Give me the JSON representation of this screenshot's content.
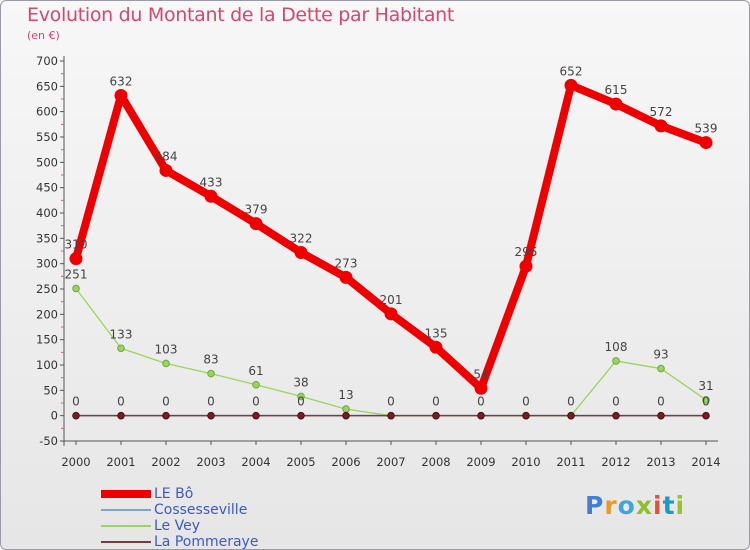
{
  "chart_data": {
    "type": "line",
    "title": "Evolution du Montant de la Dette par Habitant",
    "subtitle": "(en €)",
    "xlabel": "",
    "ylabel": "",
    "ylim": [
      -50,
      700
    ],
    "yticks": [
      -50,
      0,
      50,
      100,
      150,
      200,
      250,
      300,
      350,
      400,
      450,
      500,
      550,
      600,
      650,
      700
    ],
    "categories": [
      "2000",
      "2001",
      "2002",
      "2003",
      "2004",
      "2005",
      "2006",
      "2007",
      "2008",
      "2009",
      "2010",
      "2011",
      "2012",
      "2013",
      "2014"
    ],
    "grid": false,
    "legend_position": "bottom-left",
    "series": [
      {
        "name": "LE Bô",
        "color": "#ee0000",
        "values": [
          310,
          632,
          484,
          433,
          379,
          322,
          273,
          201,
          135,
          54,
          295,
          652,
          615,
          572,
          539
        ],
        "labels": [
          "310",
          "632",
          "484",
          "433",
          "379",
          "322",
          "273",
          "201",
          "135",
          "54",
          "295",
          "652",
          "615",
          "572",
          "539"
        ]
      },
      {
        "name": "Cossesseville",
        "color": "#7aa6cc",
        "values": [
          0,
          0,
          0,
          0,
          0,
          0,
          0,
          0,
          0,
          0,
          0,
          0,
          0,
          0,
          0
        ],
        "labels": [
          "0",
          "0",
          "0",
          "0",
          "0",
          "0",
          "",
          "0",
          "0",
          "0",
          "0",
          "0",
          "0",
          "0",
          "0"
        ]
      },
      {
        "name": "Le Vey",
        "color": "#9ad35e",
        "values": [
          251,
          133,
          103,
          83,
          61,
          38,
          13,
          0,
          0,
          0,
          0,
          0,
          108,
          93,
          31
        ],
        "labels": [
          "251",
          "133",
          "103",
          "83",
          "61",
          "38",
          "13",
          "",
          "",
          "",
          "",
          "",
          "108",
          "93",
          "31"
        ]
      },
      {
        "name": "La Pommeraye",
        "color": "#7a3a3e",
        "values": [
          0,
          0,
          0,
          0,
          0,
          0,
          0,
          0,
          0,
          0,
          0,
          0,
          0,
          0,
          0
        ],
        "labels": [
          "",
          "",
          "",
          "",
          "",
          "",
          "",
          "",
          "",
          "",
          "",
          "",
          "",
          "",
          ""
        ]
      }
    ]
  },
  "brand": {
    "letters": [
      "P",
      "r",
      "o",
      "x",
      "i",
      "t",
      "i"
    ]
  }
}
